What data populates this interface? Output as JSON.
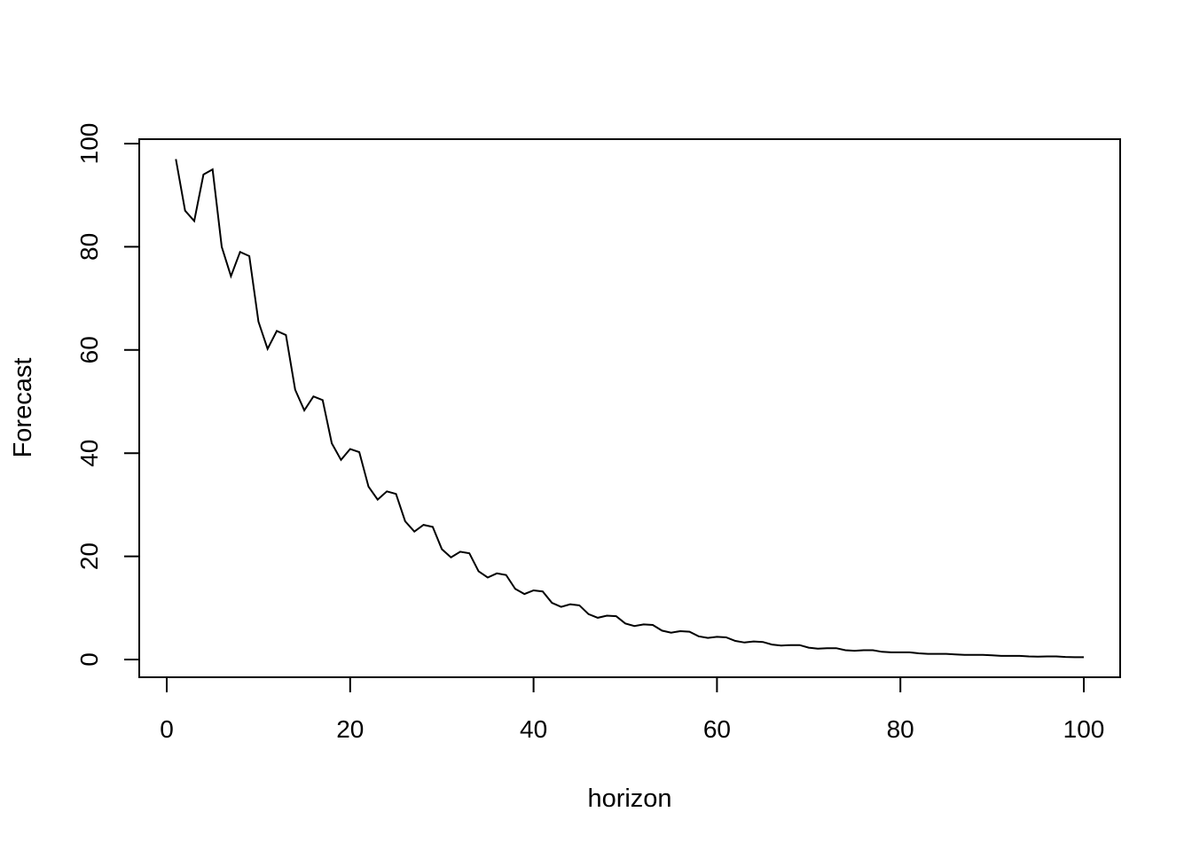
{
  "chart_data": {
    "type": "line",
    "xlabel": "horizon",
    "ylabel": "Forecast",
    "xlim": [
      0,
      100
    ],
    "ylim": [
      0,
      100
    ],
    "xticks": [
      0,
      20,
      40,
      60,
      80,
      100
    ],
    "yticks": [
      0,
      20,
      40,
      60,
      80,
      100
    ],
    "grid": false,
    "series": [
      {
        "color": "#000000",
        "x": [
          1,
          2,
          3,
          4,
          5,
          6,
          7,
          8,
          9,
          10,
          11,
          12,
          13,
          14,
          15,
          16,
          17,
          18,
          19,
          20,
          21,
          22,
          23,
          24,
          25,
          26,
          27,
          28,
          29,
          30,
          31,
          32,
          33,
          34,
          35,
          36,
          37,
          38,
          39,
          40,
          41,
          42,
          43,
          44,
          45,
          46,
          47,
          48,
          49,
          50,
          51,
          52,
          53,
          54,
          55,
          56,
          57,
          58,
          59,
          60,
          61,
          62,
          63,
          64,
          65,
          66,
          67,
          68,
          69,
          70,
          71,
          72,
          73,
          74,
          75,
          76,
          77,
          78,
          79,
          80,
          81,
          82,
          83,
          84,
          85,
          86,
          87,
          88,
          89,
          90,
          91,
          92,
          93,
          94,
          95,
          96,
          97,
          98,
          99,
          100
        ],
        "values": [
          97.0,
          87.0,
          85.0,
          94.0,
          95.0,
          80.0,
          74.3,
          79.0,
          78.2,
          65.5,
          60.2,
          63.7,
          62.9,
          52.3,
          48.3,
          51.0,
          50.3,
          41.9,
          38.7,
          40.8,
          40.2,
          33.5,
          31.0,
          32.6,
          32.1,
          26.8,
          24.8,
          26.1,
          25.7,
          21.4,
          19.8,
          20.9,
          20.6,
          17.1,
          15.9,
          16.7,
          16.4,
          13.7,
          12.7,
          13.4,
          13.2,
          11.0,
          10.2,
          10.7,
          10.5,
          8.8,
          8.1,
          8.5,
          8.4,
          7.0,
          6.5,
          6.8,
          6.7,
          5.6,
          5.2,
          5.5,
          5.4,
          4.5,
          4.2,
          4.4,
          4.3,
          3.6,
          3.3,
          3.5,
          3.4,
          2.9,
          2.7,
          2.8,
          2.8,
          2.3,
          2.1,
          2.2,
          2.2,
          1.8,
          1.7,
          1.8,
          1.8,
          1.5,
          1.4,
          1.4,
          1.4,
          1.2,
          1.1,
          1.1,
          1.1,
          1.0,
          0.9,
          0.9,
          0.9,
          0.8,
          0.7,
          0.7,
          0.7,
          0.6,
          0.55,
          0.6,
          0.6,
          0.5,
          0.45,
          0.45
        ]
      }
    ]
  }
}
